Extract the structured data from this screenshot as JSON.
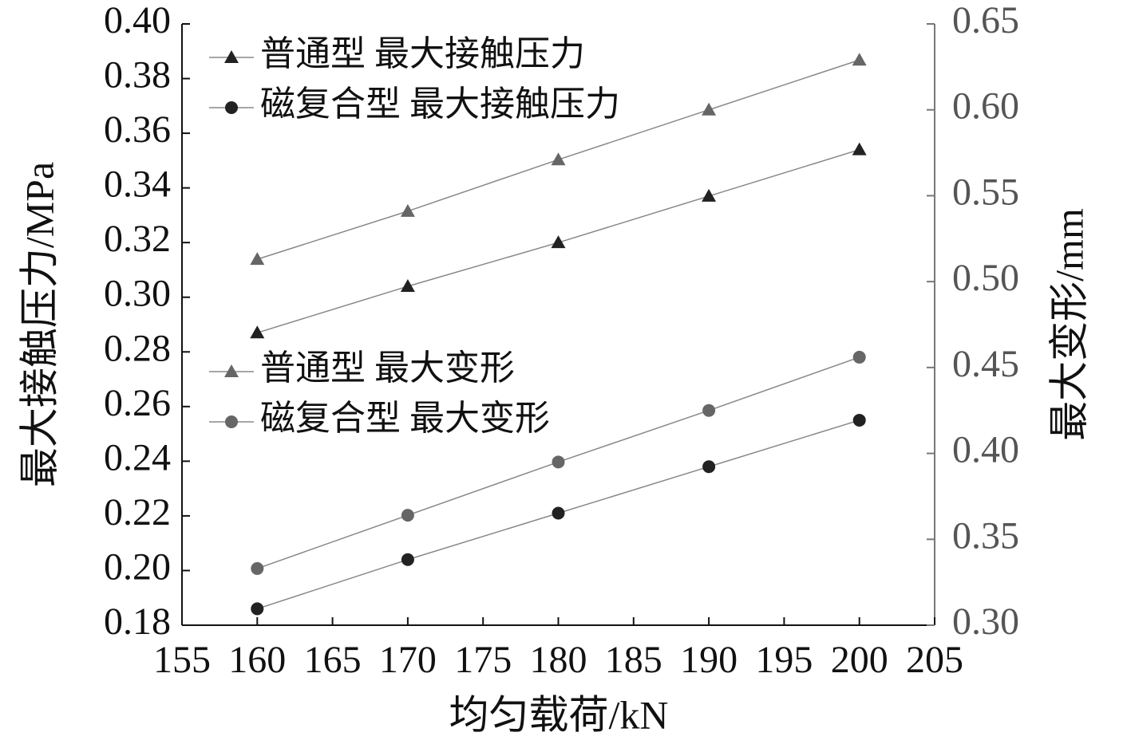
{
  "chart_data": {
    "type": "line",
    "xlabel": "均匀载荷/kN",
    "ylabel": "最大接触压力/MPa",
    "y2label": "最大变形/mm",
    "x": [
      160,
      170,
      180,
      190,
      200
    ],
    "xlim": [
      155,
      205
    ],
    "xticks": [
      155,
      160,
      165,
      170,
      175,
      180,
      185,
      190,
      195,
      200,
      205
    ],
    "ylim": [
      0.18,
      0.4
    ],
    "yticks": [
      0.18,
      {
        "value": 0.2,
        "label": "0.20"
      },
      0.22,
      0.24,
      0.26,
      0.28,
      {
        "value": 0.3,
        "label": "0.30"
      },
      0.32,
      0.34,
      0.36,
      0.38,
      {
        "value": 0.4,
        "label": "0.40"
      }
    ],
    "y2lim": [
      0.3,
      0.65
    ],
    "y2ticks": [
      {
        "value": 0.3,
        "label": "0.30"
      },
      0.35,
      {
        "value": 0.4,
        "label": "0.40"
      },
      0.45,
      {
        "value": 0.5,
        "label": "0.50"
      },
      0.55,
      {
        "value": 0.6,
        "label": "0.60"
      },
      0.65
    ],
    "series": [
      {
        "name": "普通型 最大接触压力",
        "color": "#222222",
        "marker": "triangle",
        "values": [
          0.287,
          0.304,
          0.32,
          0.337,
          0.354
        ]
      },
      {
        "name": "磁复合型 最大接触压力",
        "color": "#222222",
        "marker": "circle",
        "values": [
          0.186,
          0.204,
          0.221,
          0.238,
          0.255
        ]
      },
      {
        "name": "普通型 最大变形",
        "color": "#666666",
        "marker": "triangle",
        "axis": "y2",
        "values": [
          0.513,
          0.541,
          0.571,
          0.6,
          0.629
        ]
      },
      {
        "name": "磁复合型 最大变形",
        "color": "#666666",
        "marker": "circle",
        "axis": "y2",
        "values": [
          0.333,
          0.364,
          0.395,
          0.425,
          0.456
        ]
      }
    ]
  }
}
